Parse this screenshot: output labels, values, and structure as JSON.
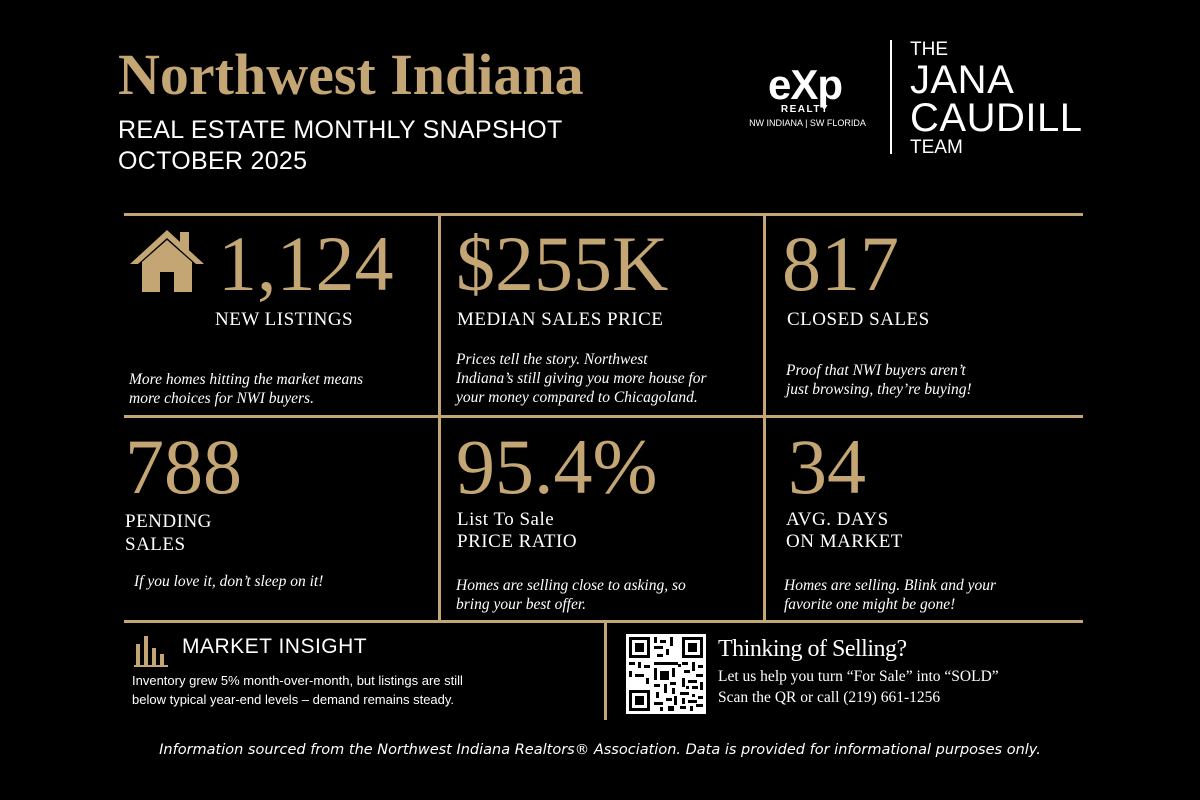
{
  "header": {
    "title": "Northwest Indiana",
    "subtitle_line1": "REAL ESTATE MONTHLY SNAPSHOT",
    "subtitle_line2": "OCTOBER 2025"
  },
  "logos": {
    "exp_mark": "eXp",
    "exp_realty": "REALTY",
    "exp_region": "NW INDIANA | SW FLORIDA",
    "team_the": "THE",
    "team_jana": "JANA",
    "team_caudill": "CAUDILL",
    "team_team": "TEAM"
  },
  "stats": [
    {
      "value": "1,124",
      "label": "NEW LISTINGS",
      "blurb": "More homes hitting the market means\nmore choices for NWI buyers.",
      "icon": "house-icon"
    },
    {
      "value": "$255K",
      "label": "MEDIAN SALES PRICE",
      "blurb": "Prices tell the story. Northwest\nIndiana’s still giving you more house for\nyour money compared to Chicagoland."
    },
    {
      "value": "817",
      "label": "CLOSED SALES",
      "blurb": "Proof that NWI buyers aren’t\njust browsing, they’re buying!"
    },
    {
      "value": "788",
      "label_line1": "PENDING",
      "label_line2": "SALES",
      "blurb": "If you love it, don’t sleep on it!"
    },
    {
      "value": "95.4%",
      "label_line1": "List To Sale",
      "label_line2": "PRICE RATIO",
      "blurb": "Homes are selling close to asking, so\nbring your best offer."
    },
    {
      "value": "34",
      "label_line1": "AVG. DAYS",
      "label_line2": "ON MARKET",
      "blurb": "Homes are selling. Blink and your\nfavorite one might be gone!"
    }
  ],
  "insight": {
    "icon": "bar-chart-icon",
    "title": "MARKET INSIGHT",
    "text": "Inventory grew 5% month-over-month, but listings are still\nbelow typical year-end levels – demand remains steady."
  },
  "selling": {
    "title": "Thinking of Selling?",
    "line1": "Let us help you turn “For Sale” into “SOLD”",
    "line2": "Scan the QR or call (219) 661-1256",
    "qr_icon": "qr-code-icon"
  },
  "footer": "Information sourced from the Northwest Indiana Realtors® Association. Data is provided for informational purposes only.",
  "colors": {
    "accent": "#c4a574",
    "background": "#000000",
    "text": "#ffffff"
  }
}
